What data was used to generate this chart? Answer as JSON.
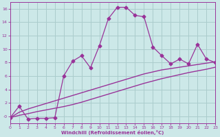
{
  "x": [
    0,
    1,
    2,
    3,
    4,
    5,
    6,
    7,
    8,
    9,
    10,
    11,
    12,
    13,
    14,
    15,
    16,
    17,
    18,
    19,
    20,
    21,
    22,
    23
  ],
  "y_main": [
    -0.2,
    1.5,
    -0.4,
    -0.3,
    -0.3,
    -0.2,
    6.0,
    8.2,
    9.0,
    7.2,
    10.5,
    14.5,
    16.2,
    16.2,
    15.0,
    14.8,
    10.3,
    9.0,
    7.8,
    8.5,
    7.8,
    10.7,
    8.5,
    8.0
  ],
  "y_line1": [
    -0.2,
    0.6,
    1.1,
    1.5,
    1.9,
    2.3,
    2.7,
    3.1,
    3.5,
    3.9,
    4.3,
    4.7,
    5.1,
    5.5,
    5.9,
    6.3,
    6.6,
    6.9,
    7.1,
    7.3,
    7.5,
    7.7,
    7.9,
    8.1
  ],
  "y_line2": [
    -0.2,
    0.15,
    0.4,
    0.7,
    0.95,
    1.2,
    1.45,
    1.75,
    2.1,
    2.5,
    2.9,
    3.3,
    3.7,
    4.1,
    4.5,
    4.9,
    5.25,
    5.6,
    5.9,
    6.2,
    6.5,
    6.75,
    7.0,
    7.3
  ],
  "background_color": "#cce8e8",
  "grid_color": "#aacccc",
  "line_color": "#993399",
  "xlabel": "Windchill (Refroidissement éolien,°C)",
  "ylim": [
    -1,
    17
  ],
  "xlim": [
    0,
    23
  ],
  "yticks": [
    0,
    2,
    4,
    6,
    8,
    10,
    12,
    14,
    16
  ],
  "xticks": [
    0,
    1,
    2,
    3,
    4,
    5,
    6,
    7,
    8,
    9,
    10,
    11,
    12,
    13,
    14,
    15,
    16,
    17,
    18,
    19,
    20,
    21,
    22,
    23
  ]
}
